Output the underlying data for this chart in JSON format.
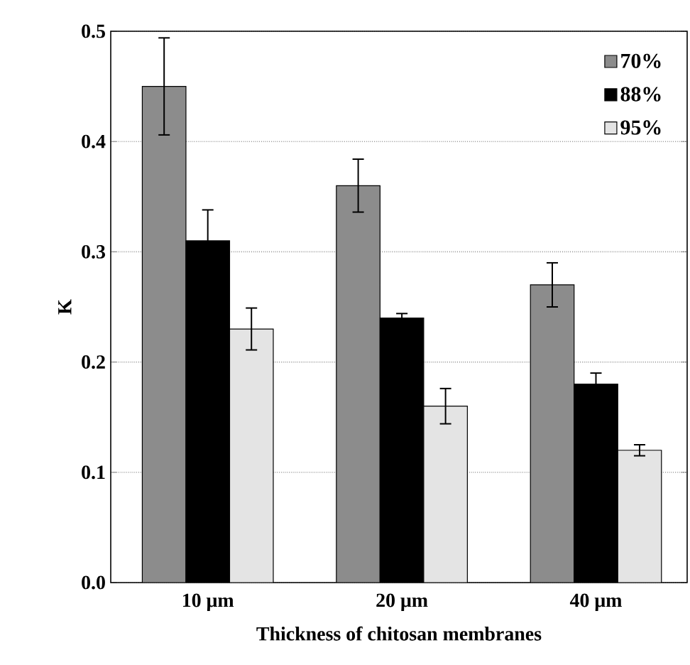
{
  "chart_data": {
    "type": "bar",
    "xlabel": "Thickness of chitosan membranes",
    "ylabel": "K",
    "categories": [
      "10 μm",
      "20 μm",
      "40 μm"
    ],
    "series": [
      {
        "name": "70%",
        "color": "#8c8c8c",
        "values": [
          0.45,
          0.36,
          0.27
        ],
        "errors": [
          0.044,
          0.024,
          0.02
        ]
      },
      {
        "name": "88%",
        "color": "#000000",
        "values": [
          0.31,
          0.24,
          0.18
        ],
        "errors": [
          0.028,
          0.004,
          0.01
        ]
      },
      {
        "name": "95%",
        "color": "#e4e4e4",
        "values": [
          0.23,
          0.16,
          0.12
        ],
        "errors": [
          0.019,
          0.016,
          0.005
        ]
      }
    ],
    "ylim": [
      0,
      0.5
    ],
    "yticks": [
      {
        "value": 0,
        "label": "0.0"
      },
      0.1,
      0.2,
      0.3,
      0.4,
      0.5
    ],
    "grid": "y",
    "legend": "top right"
  }
}
